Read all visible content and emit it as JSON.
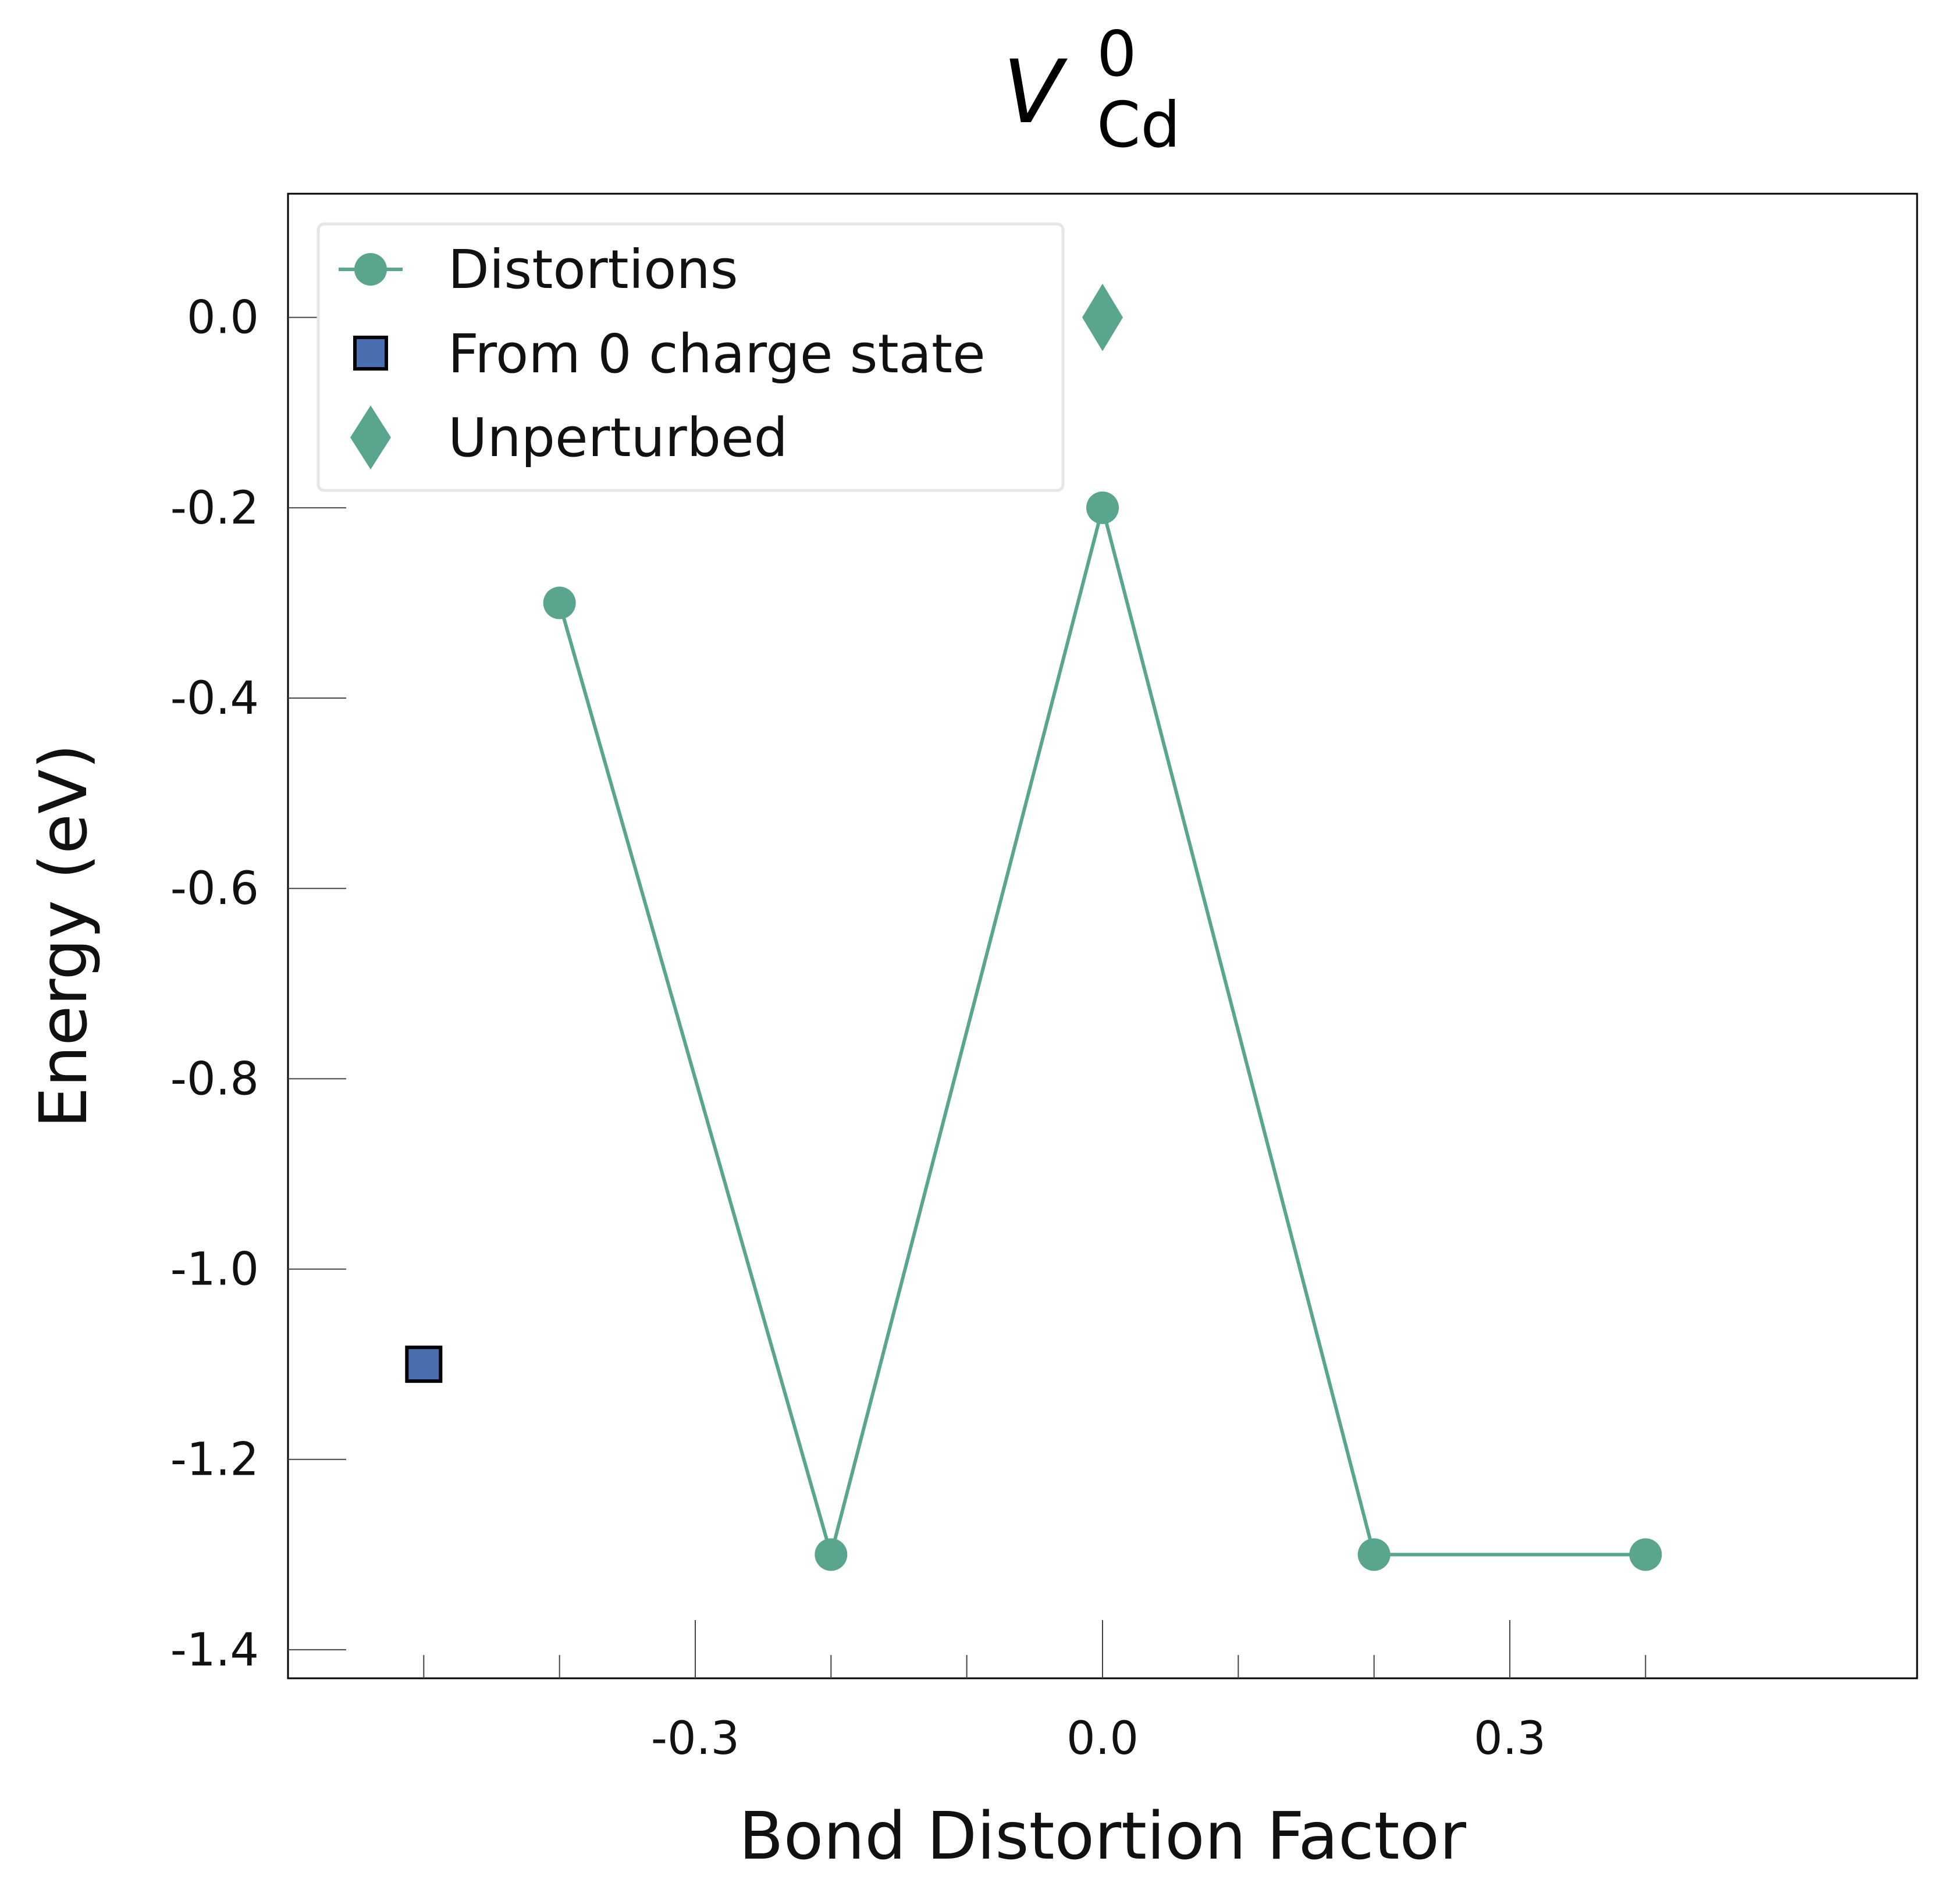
{
  "chart_data": {
    "type": "scatter",
    "title": {
      "symbol": "V",
      "superscript": "0",
      "subscript": "Cd"
    },
    "xlabel": "Bond Distortion Factor",
    "ylabel": "Energy (eV)",
    "xlim": [
      -0.6,
      0.6
    ],
    "ylim": [
      -1.43,
      0.13
    ],
    "x_ticks": [
      -0.3,
      0.0,
      0.3
    ],
    "x_tick_labels": [
      "-0.3",
      "0.0",
      "0.3"
    ],
    "x_minor_ticks": [
      -0.5,
      -0.4,
      -0.2,
      -0.1,
      0.1,
      0.2,
      0.4
    ],
    "y_ticks": [
      0.0,
      -0.2,
      -0.4,
      -0.6,
      -0.8,
      -1.0,
      -1.2,
      -1.4
    ],
    "y_tick_labels": [
      "0.0",
      "-0.2",
      "-0.4",
      "-0.6",
      "-0.8",
      "-1.0",
      "-1.2",
      "-1.4"
    ],
    "grid": false,
    "legend_position": "top-left",
    "series": [
      {
        "name": "Distortions",
        "marker": "circle",
        "line": true,
        "color": "#5aa58e",
        "points": [
          {
            "x": -0.4,
            "y": -0.3
          },
          {
            "x": -0.2,
            "y": -1.3
          },
          {
            "x": 0.0,
            "y": -0.2
          },
          {
            "x": 0.2,
            "y": -1.3
          },
          {
            "x": 0.4,
            "y": -1.3
          }
        ]
      },
      {
        "name": "From 0 charge state",
        "marker": "square",
        "line": false,
        "color": "#4a6fb0",
        "edge_color": "#000000",
        "points": [
          {
            "x": -0.5,
            "y": -1.1
          }
        ]
      },
      {
        "name": "Unperturbed",
        "marker": "diamond",
        "line": false,
        "color": "#5aa58e",
        "points": [
          {
            "x": 0.0,
            "y": 0.0
          }
        ]
      }
    ]
  }
}
